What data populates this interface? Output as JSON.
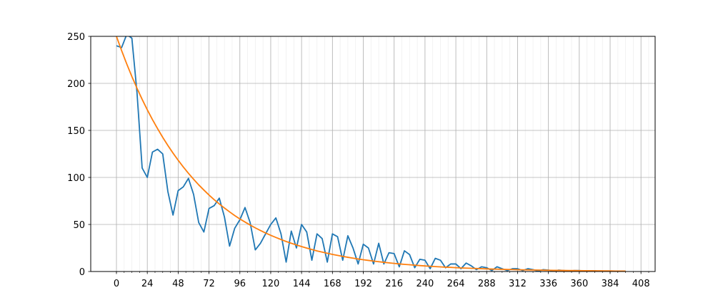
{
  "chart_data": {
    "type": "line",
    "x": [
      0,
      4,
      8,
      12,
      16,
      20,
      24,
      28,
      32,
      36,
      40,
      44,
      48,
      52,
      56,
      60,
      64,
      68,
      72,
      76,
      80,
      84,
      88,
      92,
      96,
      100,
      104,
      108,
      112,
      116,
      120,
      124,
      128,
      132,
      136,
      140,
      144,
      148,
      152,
      156,
      160,
      164,
      168,
      172,
      176,
      180,
      184,
      188,
      192,
      196,
      200,
      204,
      208,
      212,
      216,
      220,
      224,
      228,
      232,
      236,
      240,
      244,
      248,
      252,
      256,
      260,
      264,
      268,
      272,
      276,
      280,
      284,
      288,
      292,
      296,
      300,
      304,
      308,
      312,
      316,
      320,
      324,
      328,
      332,
      336,
      340,
      344,
      348,
      352,
      356,
      360,
      364,
      368,
      372,
      376,
      380,
      384,
      388,
      392,
      396
    ],
    "series": [
      {
        "color": "#1f77b4",
        "values": [
          240,
          238,
          252,
          248,
          190,
          110,
          100,
          127,
          130,
          125,
          85,
          60,
          86,
          90,
          99,
          82,
          52,
          42,
          67,
          70,
          78,
          58,
          27,
          46,
          55,
          68,
          52,
          23,
          30,
          40,
          50,
          57,
          40,
          10,
          43,
          25,
          50,
          42,
          12,
          40,
          35,
          10,
          40,
          37,
          12,
          38,
          25,
          8,
          29,
          25,
          8,
          30,
          8,
          20,
          19,
          5,
          22,
          18,
          4,
          13,
          12,
          3,
          14,
          12,
          4,
          8,
          8,
          3,
          9,
          6,
          2,
          5,
          4,
          1,
          5,
          3,
          1,
          3,
          3,
          1,
          3,
          2,
          0.5,
          2,
          1.5,
          0.5,
          1.5,
          1,
          0.3,
          1,
          1,
          0.3,
          0.8,
          0.7,
          0.2,
          0.5,
          0.5,
          0.2,
          0.4,
          0.3
        ]
      },
      {
        "color": "#ff7f0e",
        "values": [
          250,
          234.9,
          220.7,
          207.3,
          194.8,
          183.0,
          171.9,
          161.5,
          151.8,
          142.6,
          134.0,
          125.9,
          118.3,
          111.1,
          104.4,
          98.1,
          92.1,
          86.6,
          81.3,
          76.4,
          71.8,
          67.5,
          63.4,
          59.5,
          55.9,
          52.6,
          49.4,
          46.4,
          43.6,
          41.0,
          38.5,
          36.2,
          34.0,
          31.9,
          30.0,
          28.2,
          26.5,
          24.9,
          23.4,
          21.9,
          20.6,
          19.4,
          18.2,
          17.1,
          16.1,
          15.1,
          14.2,
          13.3,
          12.5,
          11.8,
          11.1,
          10.4,
          9.8,
          9.2,
          8.6,
          8.1,
          7.6,
          7.2,
          6.7,
          6.3,
          5.9,
          5.6,
          5.2,
          4.9,
          4.6,
          4.4,
          4.1,
          3.8,
          3.6,
          3.4,
          3.2,
          3.0,
          2.8,
          2.6,
          2.5,
          2.3,
          2.2,
          2.1,
          1.9,
          1.8,
          1.7,
          1.6,
          1.5,
          1.4,
          1.3,
          1.2,
          1.2,
          1.1,
          1.0,
          1.0,
          0.9,
          0.8,
          0.8,
          0.7,
          0.7,
          0.6,
          0.6,
          0.5,
          0.5,
          0.5
        ]
      }
    ],
    "xlim": [
      -20,
      419
    ],
    "ylim": [
      0,
      250
    ],
    "xticks": [
      0,
      24,
      48,
      72,
      96,
      120,
      144,
      168,
      192,
      216,
      240,
      264,
      288,
      312,
      336,
      360,
      384,
      408
    ],
    "xminorticks": [
      0,
      6,
      12,
      18,
      24,
      30,
      36,
      42,
      48,
      54,
      60,
      66,
      72,
      78,
      84,
      90,
      96,
      102,
      108,
      114,
      120,
      126,
      132,
      138,
      144,
      150,
      156,
      162,
      168,
      174,
      180,
      186,
      192,
      198,
      204,
      210,
      216,
      222,
      228,
      234,
      240,
      246,
      252,
      258,
      264,
      270,
      276,
      282,
      288,
      294,
      300,
      306,
      312,
      318,
      324,
      330,
      336,
      342,
      348,
      354,
      360,
      366,
      372,
      378,
      384,
      390,
      396,
      402,
      408,
      414
    ],
    "yticks": [
      0,
      50,
      100,
      150,
      200,
      250
    ],
    "grid": true,
    "minor_grid": true
  }
}
